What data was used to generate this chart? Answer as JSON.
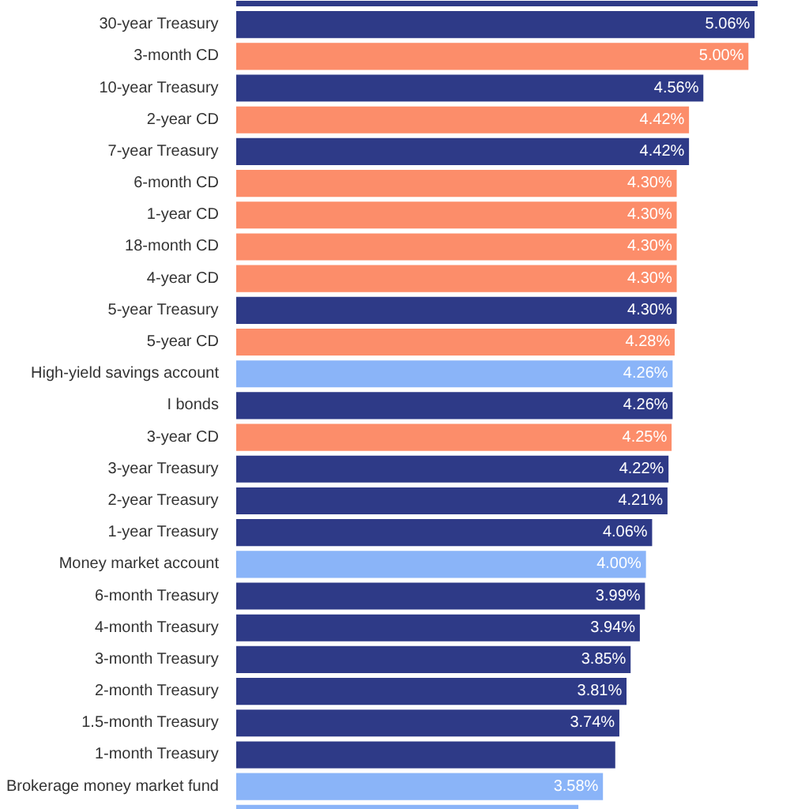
{
  "chart_data": {
    "type": "bar",
    "orientation": "horizontal",
    "categories": [
      null,
      "30-year Treasury",
      "3-month CD",
      "10-year Treasury",
      "2-year CD",
      "7-year Treasury",
      "6-month CD",
      "1-year CD",
      "18-month CD",
      "4-year CD",
      "5-year Treasury",
      "5-year CD",
      "High-yield savings account",
      "I bonds",
      "3-year CD",
      "3-year Treasury",
      "2-year Treasury",
      "1-year Treasury",
      "Money market account",
      "6-month Treasury",
      "4-month Treasury",
      "3-month Treasury",
      "2-month Treasury",
      "1.5-month Treasury",
      "1-month Treasury",
      "Brokerage money market fund",
      null
    ],
    "values": [
      5.09,
      5.06,
      5.0,
      4.56,
      4.42,
      4.42,
      4.3,
      4.3,
      4.3,
      4.3,
      4.3,
      4.28,
      4.26,
      4.26,
      4.25,
      4.22,
      4.21,
      4.06,
      4.0,
      3.99,
      3.94,
      3.85,
      3.81,
      3.74,
      3.7,
      3.58,
      3.34
    ],
    "value_labels": [
      null,
      "5.06%",
      "5.00%",
      "4.56%",
      "4.42%",
      "4.42%",
      "4.30%",
      "4.30%",
      "4.30%",
      "4.30%",
      "4.30%",
      "4.28%",
      "4.26%",
      "4.26%",
      "4.25%",
      "4.22%",
      "4.21%",
      "4.06%",
      "4.00%",
      "3.99%",
      "3.94%",
      "3.85%",
      "3.81%",
      "3.74%",
      null,
      "3.58%",
      null
    ],
    "colors": [
      "#2e3a87",
      "#2e3a87",
      "#fc8d6a",
      "#2e3a87",
      "#fc8d6a",
      "#2e3a87",
      "#fc8d6a",
      "#fc8d6a",
      "#fc8d6a",
      "#fc8d6a",
      "#2e3a87",
      "#fc8d6a",
      "#8ab4f8",
      "#2e3a87",
      "#fc8d6a",
      "#2e3a87",
      "#2e3a87",
      "#2e3a87",
      "#8ab4f8",
      "#2e3a87",
      "#2e3a87",
      "#2e3a87",
      "#2e3a87",
      "#2e3a87",
      "#2e3a87",
      "#8ab4f8",
      "#8ab4f8"
    ]
  }
}
